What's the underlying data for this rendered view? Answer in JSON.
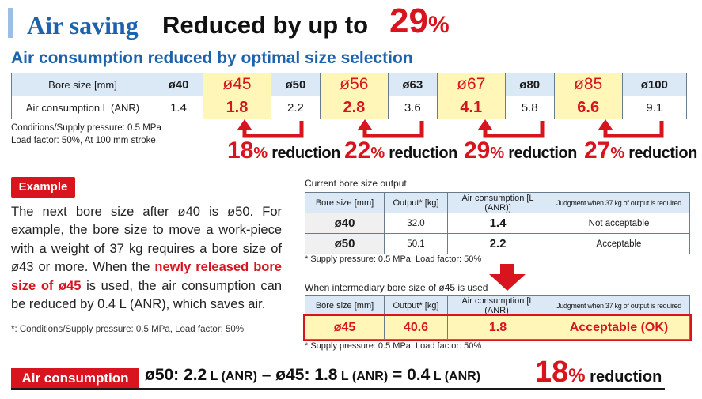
{
  "header": {
    "title": "Air saving",
    "subtitle": "Reduced by up to",
    "percent_number": "29",
    "percent_unit": "%"
  },
  "section_title": "Air consumption reduced by optimal size selection",
  "main_table": {
    "row1_label": "Bore size [mm]",
    "row2_label": "Air consumption L (ANR)",
    "bore_sizes": [
      "ø40",
      "ø45",
      "ø50",
      "ø56",
      "ø63",
      "ø67",
      "ø80",
      "ø85",
      "ø100"
    ],
    "air_values": [
      "1.4",
      "1.8",
      "2.2",
      "2.8",
      "3.6",
      "4.1",
      "5.8",
      "6.6",
      "9.1"
    ],
    "highlighted_columns": [
      1,
      3,
      5,
      7
    ]
  },
  "conditions": {
    "line1": "Conditions/Supply pressure: 0.5 MPa",
    "line2": "Load factor: 50%, At 100 mm stroke"
  },
  "reductions": [
    {
      "num": "18",
      "pct": "%",
      "word": " reduction"
    },
    {
      "num": "22",
      "pct": "%",
      "word": " reduction"
    },
    {
      "num": "29",
      "pct": "%",
      "word": " reduction"
    },
    {
      "num": "27",
      "pct": "%",
      "word": " reduction"
    }
  ],
  "example": {
    "badge": "Example",
    "text_part1": "The next bore size after ø40 is ø50. For example, the bore size to move a work-piece with a weight of 37 kg requires a bore size of ø43 or more. When the ",
    "text_highlight": "newly released bore size of ø45",
    "text_part2": " is used, the air consumption can be reduced by 0.4 L (ANR), which saves air.",
    "note": "*: Conditions/Supply pressure: 0.5 MPa, Load factor: 50%"
  },
  "current_table": {
    "caption": "Current bore size output",
    "headers": [
      "Bore size [mm]",
      "Output* [kg]",
      "Air consumption [L (ANR)]",
      "Judgment when 37 kg of output is required"
    ],
    "rows": [
      {
        "bore": "ø40",
        "output": "32.0",
        "air": "1.4",
        "judgment": "Not acceptable"
      },
      {
        "bore": "ø50",
        "output": "50.1",
        "air": "2.2",
        "judgment": "Acceptable"
      }
    ],
    "note": "* Supply pressure: 0.5 MPa, Load factor: 50%"
  },
  "intermediary_table": {
    "caption": "When intermediary bore size of ø45 is used",
    "headers": [
      "Bore size [mm]",
      "Output* [kg]",
      "Air consumption [L (ANR)]",
      "Judgment when 37 kg of output is required"
    ],
    "row": {
      "bore": "ø45",
      "output": "40.6",
      "air": "1.8",
      "judgment": "Acceptable (OK)"
    },
    "note": "* Supply pressure: 0.5 MPa, Load factor: 50%"
  },
  "bottom": {
    "badge": "Air consumption",
    "part1": "ø50: 2.2",
    "unit1": " L (ANR)",
    "part2": " – ø45: 1.8",
    "unit2": " L (ANR)",
    "part3": " = 0.4",
    "unit3": " L (ANR)",
    "num": "18",
    "pct": "%",
    "word": " reduction"
  },
  "colors": {
    "accent_blue": "#1d62ad",
    "accent_red": "#d8141f",
    "highlight_yellow": "#fff6b8",
    "header_blue": "#dbe8f6"
  }
}
